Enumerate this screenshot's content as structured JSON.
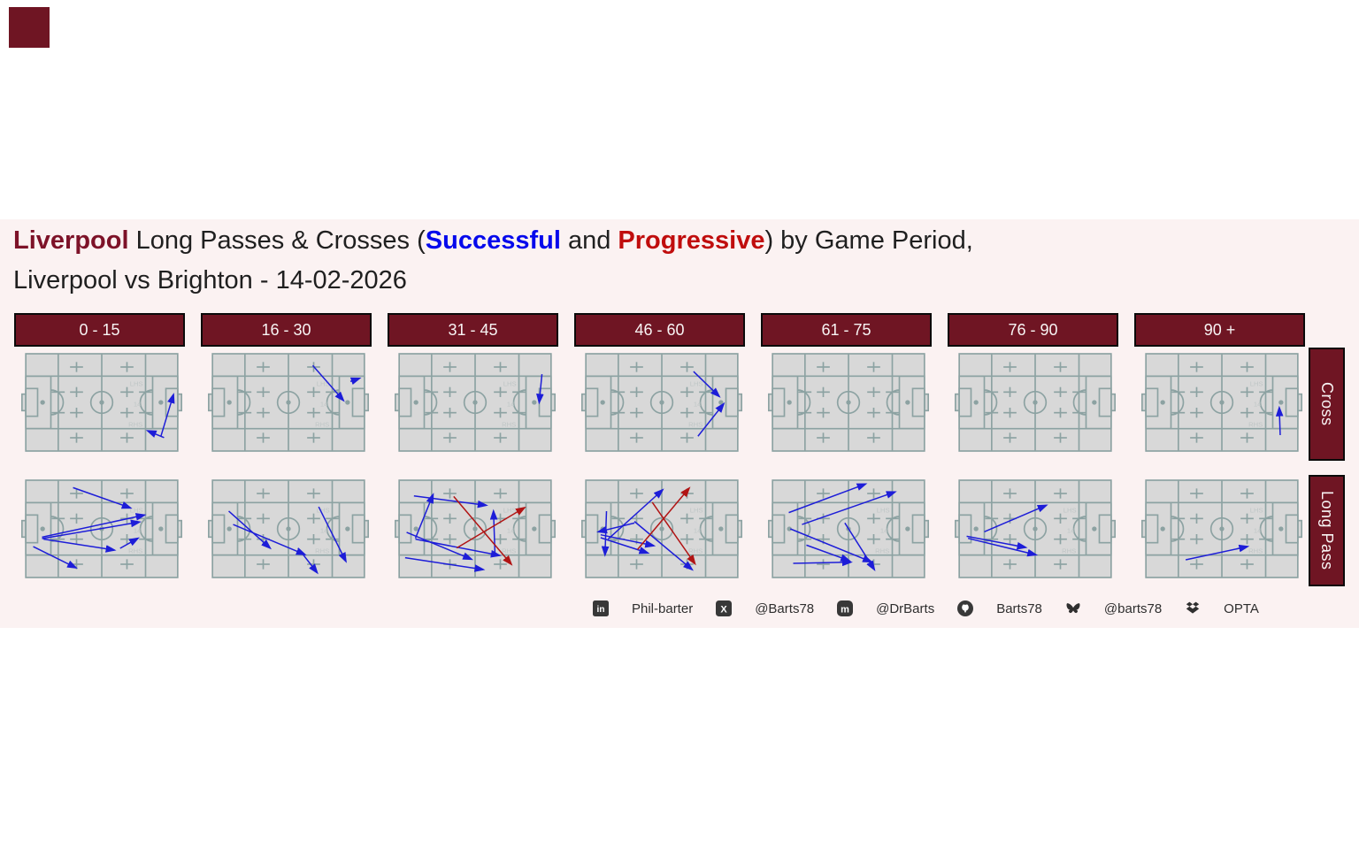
{
  "title": {
    "segments": [
      {
        "text": "Liverpool",
        "style": "maroon"
      },
      {
        "text": " Long Passes & Crosses (",
        "style": "plain"
      },
      {
        "text": "Successful",
        "style": "blue"
      },
      {
        "text": " and ",
        "style": "plain"
      },
      {
        "text": "Progressive",
        "style": "red"
      },
      {
        "text": ") by Game Period,",
        "style": "plain"
      }
    ],
    "line2": "Liverpool vs Brighton - 14-02-2026"
  },
  "footer": {
    "items": [
      {
        "icon": "linkedin-icon",
        "text": "Phil-barter"
      },
      {
        "icon": "x-icon",
        "text": "@Barts78"
      },
      {
        "icon": "mastodon-icon",
        "text": "@DrBarts"
      },
      {
        "icon": "github-icon",
        "text": "Barts78"
      },
      {
        "icon": "bluesky-icon",
        "text": "@barts78"
      },
      {
        "icon": "opta-icon",
        "text": "OPTA"
      }
    ]
  },
  "chart_data": {
    "type": "pass-map-small-multiples",
    "columns": [
      "0 - 15",
      "16 - 30",
      "31 - 45",
      "46 - 60",
      "61 - 75",
      "76 - 90",
      "90 +"
    ],
    "rows": [
      {
        "key": "cross",
        "label": "Cross"
      },
      {
        "key": "longpass",
        "label": "Long Pass"
      }
    ],
    "legend": {
      "blue_means": "Successful",
      "red_means": "Progressive"
    },
    "pitch_zone_labels": [
      "LHS",
      "14",
      "RHS"
    ],
    "colors": {
      "background": "#fbf2f2",
      "maroon": "#6f1523",
      "title_maroon": "#7d1228",
      "successful_blue": "#1d1dd8",
      "progressive_red": "#b11414",
      "pitch_fill": "#d8d8d8",
      "pitch_line": "#8ca2a2",
      "pitch_label": "#bfc6c6"
    },
    "cells": {
      "cross": [
        {
          "period": "0 - 15",
          "zone_labels": true,
          "arrows": [
            {
              "x1": 0.89,
              "y1": 0.845,
              "x2": 0.972,
              "y2": 0.42,
              "color": "blue"
            },
            {
              "x1": 0.91,
              "y1": 0.862,
              "x2": 0.803,
              "y2": 0.792,
              "color": "blue"
            }
          ]
        },
        {
          "period": "16 - 30",
          "zone_labels": true,
          "arrows": [
            {
              "x1": 0.66,
              "y1": 0.12,
              "x2": 0.862,
              "y2": 0.48,
              "color": "blue"
            },
            {
              "x1": 0.908,
              "y1": 0.285,
              "x2": 0.968,
              "y2": 0.252,
              "color": "blue"
            }
          ]
        },
        {
          "period": "31 - 45",
          "zone_labels": true,
          "arrows": [
            {
              "x1": 0.94,
              "y1": 0.21,
              "x2": 0.922,
              "y2": 0.5,
              "color": "blue"
            }
          ]
        },
        {
          "period": "46 - 60",
          "zone_labels": true,
          "arrows": [
            {
              "x1": 0.709,
              "y1": 0.182,
              "x2": 0.878,
              "y2": 0.439,
              "color": "blue"
            },
            {
              "x1": 0.738,
              "y1": 0.848,
              "x2": 0.907,
              "y2": 0.515,
              "color": "blue"
            }
          ]
        },
        {
          "period": "61 - 75",
          "zone_labels": false,
          "arrows": []
        },
        {
          "period": "76 - 90",
          "zone_labels": false,
          "arrows": []
        },
        {
          "period": "90 +",
          "zone_labels": true,
          "arrows": [
            {
              "x1": 0.884,
              "y1": 0.836,
              "x2": 0.878,
              "y2": 0.555,
              "color": "blue"
            }
          ]
        }
      ],
      "longpass": [
        {
          "period": "0 - 15",
          "zone_labels": true,
          "arrows": [
            {
              "x1": 0.311,
              "y1": 0.076,
              "x2": 0.689,
              "y2": 0.285,
              "color": "blue"
            },
            {
              "x1": 0.107,
              "y1": 0.585,
              "x2": 0.781,
              "y2": 0.358,
              "color": "blue"
            },
            {
              "x1": 0.107,
              "y1": 0.6,
              "x2": 0.748,
              "y2": 0.43,
              "color": "blue"
            },
            {
              "x1": 0.117,
              "y1": 0.606,
              "x2": 0.583,
              "y2": 0.718,
              "color": "blue"
            },
            {
              "x1": 0.621,
              "y1": 0.7,
              "x2": 0.738,
              "y2": 0.597,
              "color": "blue"
            },
            {
              "x1": 0.049,
              "y1": 0.682,
              "x2": 0.33,
              "y2": 0.9,
              "color": "blue"
            }
          ]
        },
        {
          "period": "16 - 30",
          "zone_labels": true,
          "arrows": [
            {
              "x1": 0.107,
              "y1": 0.318,
              "x2": 0.379,
              "y2": 0.697,
              "color": "blue"
            },
            {
              "x1": 0.136,
              "y1": 0.455,
              "x2": 0.608,
              "y2": 0.764,
              "color": "blue"
            },
            {
              "x1": 0.563,
              "y1": 0.697,
              "x2": 0.689,
              "y2": 0.95,
              "color": "blue"
            },
            {
              "x1": 0.699,
              "y1": 0.273,
              "x2": 0.878,
              "y2": 0.833,
              "color": "blue"
            }
          ]
        },
        {
          "period": "31 - 45",
          "zone_labels": true,
          "arrows": [
            {
              "x1": 0.097,
              "y1": 0.161,
              "x2": 0.573,
              "y2": 0.258,
              "color": "blue"
            },
            {
              "x1": 0.107,
              "y1": 0.597,
              "x2": 0.223,
              "y2": 0.148,
              "color": "blue"
            },
            {
              "x1": 0.049,
              "y1": 0.536,
              "x2": 0.476,
              "y2": 0.812,
              "color": "blue"
            },
            {
              "x1": 0.107,
              "y1": 0.606,
              "x2": 0.66,
              "y2": 0.773,
              "color": "blue"
            },
            {
              "x1": 0.039,
              "y1": 0.797,
              "x2": 0.553,
              "y2": 0.918,
              "color": "blue"
            },
            {
              "x1": 0.631,
              "y1": 0.773,
              "x2": 0.621,
              "y2": 0.318,
              "color": "blue"
            },
            {
              "x1": 0.359,
              "y1": 0.167,
              "x2": 0.738,
              "y2": 0.864,
              "color": "red"
            },
            {
              "x1": 0.379,
              "y1": 0.697,
              "x2": 0.825,
              "y2": 0.282,
              "color": "red"
            }
          ]
        },
        {
          "period": "46 - 60",
          "zone_labels": true,
          "arrows": [
            {
              "x1": 0.146,
              "y1": 0.606,
              "x2": 0.505,
              "y2": 0.1,
              "color": "blue"
            },
            {
              "x1": 0.136,
              "y1": 0.318,
              "x2": 0.126,
              "y2": 0.767,
              "color": "blue"
            },
            {
              "x1": 0.32,
              "y1": 0.44,
              "x2": 0.083,
              "y2": 0.53,
              "color": "blue"
            },
            {
              "x1": 0.097,
              "y1": 0.561,
              "x2": 0.447,
              "y2": 0.673,
              "color": "blue"
            },
            {
              "x1": 0.097,
              "y1": 0.591,
              "x2": 0.408,
              "y2": 0.748,
              "color": "blue"
            },
            {
              "x1": 0.32,
              "y1": 0.424,
              "x2": 0.699,
              "y2": 0.918,
              "color": "blue"
            },
            {
              "x1": 0.437,
              "y1": 0.227,
              "x2": 0.718,
              "y2": 0.858,
              "color": "red"
            },
            {
              "x1": 0.34,
              "y1": 0.712,
              "x2": 0.68,
              "y2": 0.082,
              "color": "red"
            }
          ]
        },
        {
          "period": "61 - 75",
          "zone_labels": true,
          "arrows": [
            {
              "x1": 0.107,
              "y1": 0.333,
              "x2": 0.612,
              "y2": 0.039,
              "color": "blue"
            },
            {
              "x1": 0.194,
              "y1": 0.455,
              "x2": 0.806,
              "y2": 0.121,
              "color": "blue"
            },
            {
              "x1": 0.117,
              "y1": 0.5,
              "x2": 0.65,
              "y2": 0.839,
              "color": "blue"
            },
            {
              "x1": 0.476,
              "y1": 0.439,
              "x2": 0.67,
              "y2": 0.918,
              "color": "blue"
            },
            {
              "x1": 0.223,
              "y1": 0.667,
              "x2": 0.505,
              "y2": 0.827,
              "color": "blue"
            },
            {
              "x1": 0.136,
              "y1": 0.855,
              "x2": 0.515,
              "y2": 0.842,
              "color": "blue"
            }
          ]
        },
        {
          "period": "76 - 90",
          "zone_labels": true,
          "arrows": [
            {
              "x1": 0.165,
              "y1": 0.53,
              "x2": 0.573,
              "y2": 0.258,
              "color": "blue"
            },
            {
              "x1": 0.049,
              "y1": 0.576,
              "x2": 0.437,
              "y2": 0.691,
              "color": "blue"
            },
            {
              "x1": 0.058,
              "y1": 0.597,
              "x2": 0.505,
              "y2": 0.767,
              "color": "blue"
            }
          ]
        },
        {
          "period": "90 +",
          "zone_labels": true,
          "arrows": [
            {
              "x1": 0.262,
              "y1": 0.818,
              "x2": 0.669,
              "y2": 0.682,
              "color": "blue"
            }
          ]
        }
      ]
    }
  }
}
